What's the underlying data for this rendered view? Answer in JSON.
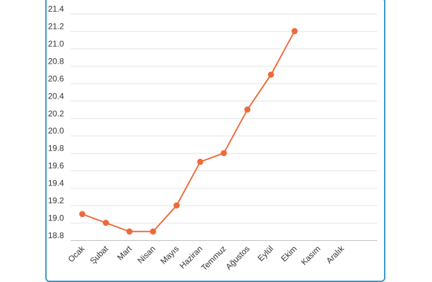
{
  "chart_data": {
    "type": "line",
    "title": "",
    "xlabel": "",
    "ylabel": "",
    "categories": [
      "Ocak",
      "Şubat",
      "Mart",
      "Nisan",
      "Mayıs",
      "Haziran",
      "Temmuz",
      "Ağustos",
      "Eylül",
      "Ekim",
      "Kasım",
      "Aralık"
    ],
    "series": [
      {
        "color": "#ee6a3a",
        "values": [
          19.1,
          19.0,
          18.9,
          18.9,
          19.2,
          19.7,
          19.8,
          20.3,
          20.7,
          21.2,
          null,
          null
        ]
      }
    ],
    "ylim": [
      18.8,
      21.4
    ],
    "yticks": [
      "21.4",
      "21.2",
      "21.0",
      "20.8",
      "20.6",
      "20.4",
      "20.2",
      "20.0",
      "19.8",
      "19.6",
      "19.4",
      "19.2",
      "19.0",
      "18.8"
    ],
    "grid": true,
    "legend": "none"
  }
}
